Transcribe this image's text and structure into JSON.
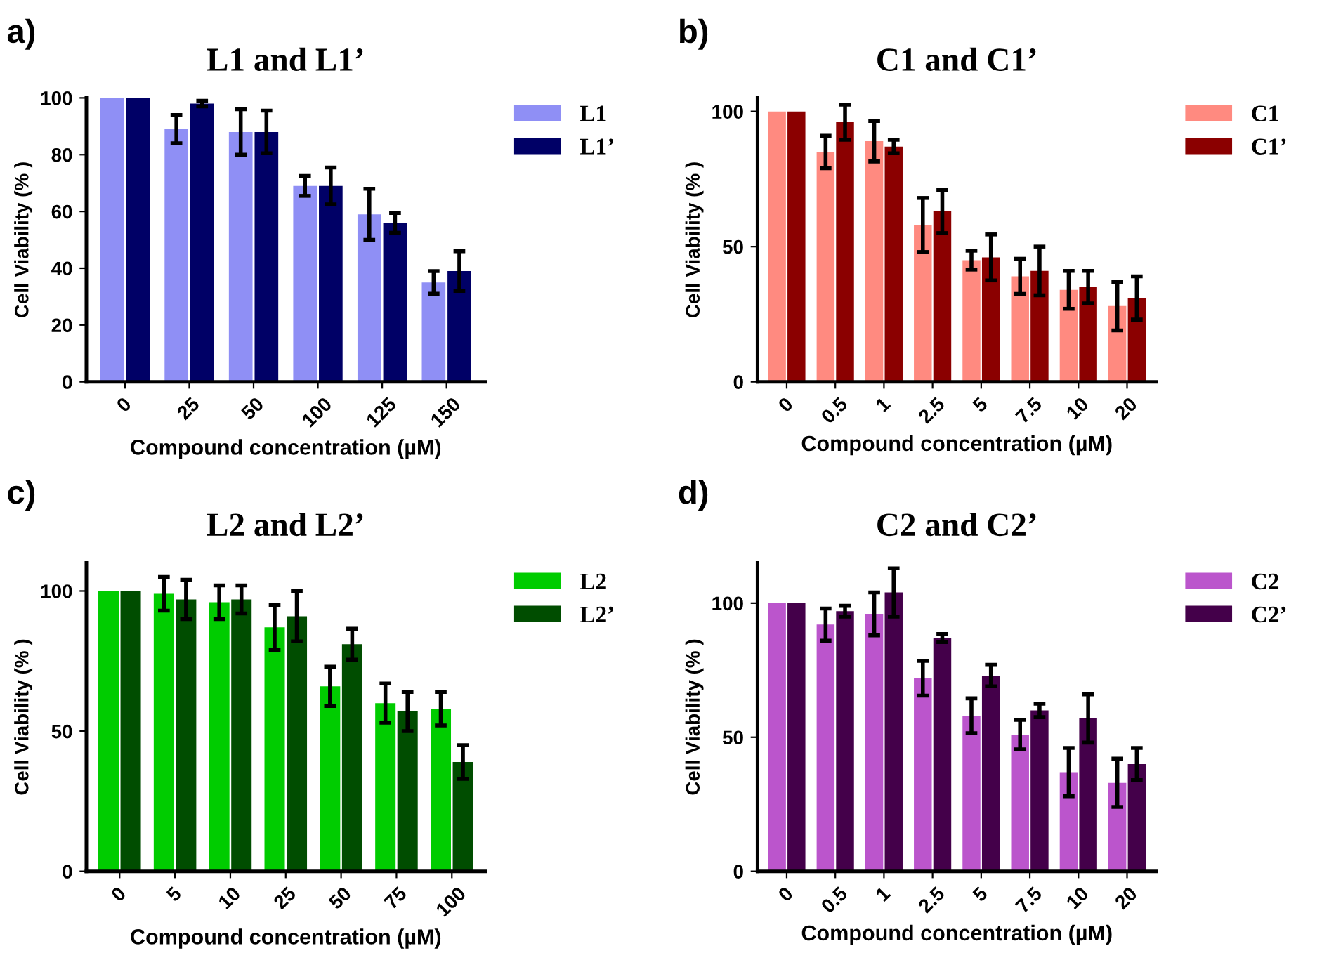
{
  "chart_data": [
    {
      "type": "bar",
      "title": "L1 and L1’",
      "annotations": [
        "a)"
      ],
      "xlabel": "Compound concentration (µM)",
      "ylabel": "Cell Viability (% )",
      "categories": [
        "0",
        "25",
        "50",
        "100",
        "125",
        "150"
      ],
      "ylim": [
        0,
        100
      ],
      "yticks": [
        0,
        20,
        40,
        60,
        80,
        100
      ],
      "legend": "right",
      "grid": false,
      "series": [
        {
          "name": "L1",
          "color": "#8f8ff5",
          "values": [
            100,
            89,
            88,
            69,
            59,
            35
          ],
          "errors": [
            null,
            5,
            8,
            3.5,
            9,
            4
          ]
        },
        {
          "name": "L1’",
          "color": "#000066",
          "values": [
            100,
            98,
            88,
            69,
            56,
            39
          ],
          "errors": [
            null,
            1,
            7.5,
            6.5,
            3.5,
            7
          ]
        }
      ]
    },
    {
      "type": "bar",
      "title": "C1 and C1’",
      "annotations": [
        "b)"
      ],
      "xlabel": "Compound concentration (µM)",
      "ylabel": "Cell Viability (% )",
      "categories": [
        "0",
        "0.5",
        "1",
        "2.5",
        "5",
        "7.5",
        "10",
        "20"
      ],
      "ylim": [
        0,
        105
      ],
      "yticks": [
        0,
        50,
        100
      ],
      "legend": "right",
      "grid": false,
      "series": [
        {
          "name": "C1",
          "color": "#ff8a80",
          "values": [
            100,
            85,
            89,
            58,
            45,
            39,
            34,
            28
          ],
          "errors": [
            null,
            6,
            7.5,
            10,
            3.5,
            6.5,
            7,
            9
          ]
        },
        {
          "name": "C1’",
          "color": "#8b0000",
          "values": [
            100,
            96,
            87,
            63,
            46,
            41,
            35,
            31
          ],
          "errors": [
            null,
            6.5,
            2.5,
            8,
            8.5,
            9,
            6,
            8
          ]
        }
      ]
    },
    {
      "type": "bar",
      "title": "L2 and L2’",
      "annotations": [
        "c)"
      ],
      "xlabel": "Compound concentration (µM)",
      "ylabel": "Cell Viability (% )",
      "categories": [
        "0",
        "5",
        "10",
        "25",
        "50",
        "75",
        "100"
      ],
      "ylim": [
        0,
        110
      ],
      "yticks": [
        0,
        50,
        100
      ],
      "legend": "right",
      "grid": false,
      "series": [
        {
          "name": "L2",
          "color": "#00cc00",
          "values": [
            100,
            99,
            96,
            87,
            66,
            60,
            58
          ],
          "errors": [
            null,
            6,
            6,
            8,
            7,
            7,
            6
          ]
        },
        {
          "name": "L2’",
          "color": "#004d00",
          "values": [
            100,
            97,
            97,
            91,
            81,
            57,
            39
          ],
          "errors": [
            null,
            7,
            5,
            9,
            5.5,
            7,
            6
          ]
        }
      ]
    },
    {
      "type": "bar",
      "title": "C2 and C2’",
      "annotations": [
        "d)"
      ],
      "xlabel": "Compound concentration (µM)",
      "ylabel": "Cell Viability (% )",
      "categories": [
        "0",
        "0.5",
        "1",
        "2.5",
        "5",
        "7.5",
        "10",
        "20"
      ],
      "ylim": [
        0,
        115
      ],
      "yticks": [
        0,
        50,
        100
      ],
      "legend": "right",
      "grid": false,
      "series": [
        {
          "name": "C2",
          "color": "#bb55cc",
          "values": [
            100,
            92,
            96,
            72,
            58,
            51,
            37,
            33
          ],
          "errors": [
            null,
            6,
            8,
            6.5,
            6.5,
            5.5,
            9,
            9
          ]
        },
        {
          "name": "C2’",
          "color": "#44004a",
          "values": [
            100,
            97,
            104,
            87,
            73,
            60,
            57,
            40
          ],
          "errors": [
            null,
            2,
            9,
            1.5,
            4,
            2.5,
            9,
            6
          ]
        }
      ]
    }
  ]
}
